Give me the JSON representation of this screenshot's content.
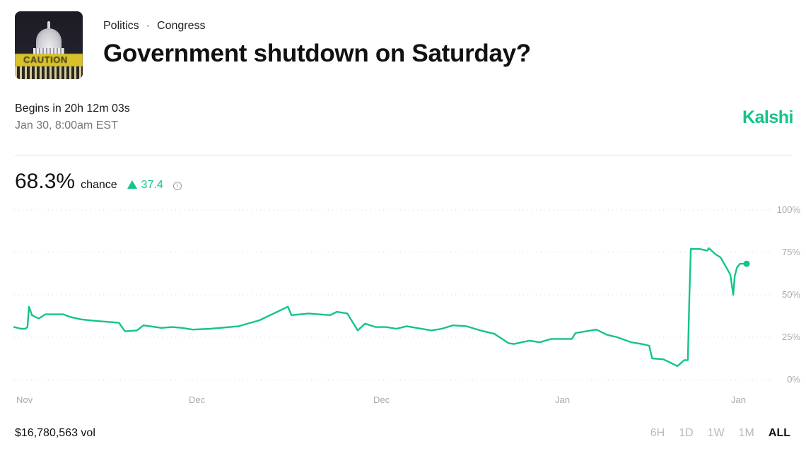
{
  "header": {
    "thumbnail": {
      "label": "CAUTION",
      "alt": "US Capitol dome behind caution tape"
    },
    "breadcrumb": {
      "category": "Politics",
      "separator": "·",
      "subcategory": "Congress"
    },
    "title": "Government shutdown on Saturday?"
  },
  "timing": {
    "countdown": "Begins in 20h 12m 03s",
    "date": "Jan 30, 8:00am EST"
  },
  "brand": {
    "name": "Kalshi",
    "color": "#14c48a"
  },
  "stat": {
    "probability": "68.3%",
    "label": "chance",
    "delta_icon": "triangle-up-icon",
    "delta": "37.4",
    "info_icon": "info-icon",
    "info_glyph": "i"
  },
  "footer": {
    "volume": "$16,780,563 vol",
    "ranges": [
      "6H",
      "1D",
      "1W",
      "1M",
      "ALL"
    ],
    "active_range": "ALL"
  },
  "colors": {
    "line": "#14c48a",
    "grid": "#d8d8d8",
    "axis_text": "#aaaaaa"
  },
  "chart_data": {
    "type": "line",
    "title": "",
    "xlabel": "",
    "ylabel": "",
    "ylim": [
      0,
      100
    ],
    "y_ticks": [
      "100%",
      "75%",
      "50%",
      "25%",
      "0%"
    ],
    "x_ticks": [
      {
        "label": "Nov",
        "pos": 0.02
      },
      {
        "label": "Dec",
        "pos": 0.245
      },
      {
        "label": "Dec",
        "pos": 0.49
      },
      {
        "label": "Jan",
        "pos": 0.735
      },
      {
        "label": "Jan",
        "pos": 0.965
      }
    ],
    "grid": "horizontal dotted",
    "legend": "none",
    "series": [
      {
        "name": "Yes chance",
        "x": [
          0,
          0.009,
          0.015,
          0.018,
          0.02,
          0.024,
          0.033,
          0.042,
          0.066,
          0.075,
          0.09,
          0.113,
          0.141,
          0.149,
          0.165,
          0.174,
          0.198,
          0.212,
          0.226,
          0.24,
          0.264,
          0.302,
          0.33,
          0.349,
          0.368,
          0.368,
          0.373,
          0.396,
          0.425,
          0.434,
          0.448,
          0.462,
          0.472,
          0.486,
          0.5,
          0.514,
          0.528,
          0.561,
          0.575,
          0.59,
          0.608,
          0.627,
          0.646,
          0.665,
          0.672,
          0.693,
          0.707,
          0.722,
          0.75,
          0.755,
          0.783,
          0.797,
          0.811,
          0.83,
          0.844,
          0.854,
          0.858,
          0.873,
          0.892,
          0.901,
          0.906,
          0.908,
          0.91,
          0.922,
          0.932,
          0.934,
          0.943,
          0.95,
          0.963,
          0.967,
          0.969,
          0.972,
          0.976,
          0.981,
          0.985
        ],
        "values": [
          31,
          30,
          30,
          31,
          43,
          38,
          36,
          38.5,
          38.5,
          37,
          35.5,
          34.5,
          33.5,
          28.5,
          29,
          32,
          30.5,
          31,
          30.5,
          29.5,
          30,
          31.5,
          35,
          39,
          43,
          43,
          38,
          39,
          38,
          40,
          39,
          29,
          33,
          31,
          31,
          30,
          31.5,
          29,
          30,
          32,
          31.5,
          29,
          27,
          21.5,
          21,
          23,
          22,
          24,
          24,
          27.5,
          29.5,
          26.5,
          25,
          22,
          21,
          20,
          12.5,
          12,
          8,
          11.5,
          11.5,
          48,
          77,
          77,
          76,
          77.5,
          74,
          72,
          62,
          50,
          61,
          66,
          68.3,
          68.3,
          68.3
        ],
        "end_value": 68.3,
        "end_marker": true
      }
    ],
    "summary": "Probability hovers ~30-43% Nov-Jan, dips to ~8% late Jan, spikes to ~77%, drops to ~50%, recovers to 68.3%"
  }
}
